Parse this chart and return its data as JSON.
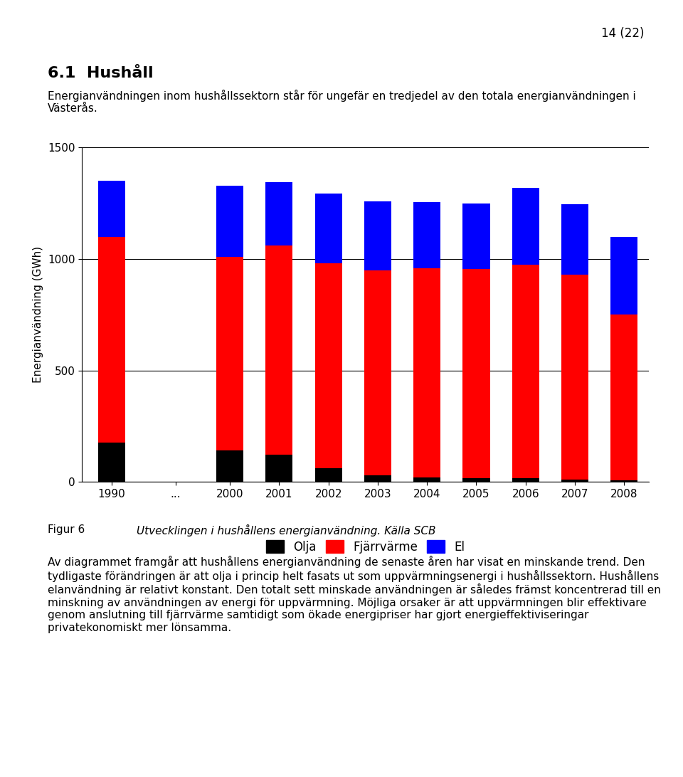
{
  "categories": [
    "1990",
    "...",
    "2000",
    "2001",
    "2002",
    "2003",
    "2004",
    "2005",
    "2006",
    "2007",
    "2008"
  ],
  "olja": [
    175,
    0,
    140,
    120,
    60,
    30,
    20,
    15,
    15,
    10,
    5
  ],
  "fjarrvarme": [
    925,
    0,
    870,
    940,
    920,
    920,
    940,
    940,
    960,
    920,
    745
  ],
  "el": [
    250,
    0,
    320,
    285,
    315,
    310,
    295,
    295,
    345,
    315,
    350
  ],
  "olja_color": "#000000",
  "fjarrvarme_color": "#ff0000",
  "el_color": "#0000ff",
  "ylabel": "Energianvändning (GWh)",
  "ylim": [
    0,
    1500
  ],
  "yticks": [
    0,
    500,
    1000,
    1500
  ],
  "legend_labels": [
    "Olja",
    "Fjärrvärme",
    "El"
  ],
  "caption_fig": "Figur 6",
  "caption_text": "Utvecklingen i hushållens energianvändning. Källa SCB",
  "page_number": "14 (22)",
  "title_text": "6.1  Hushåll",
  "subtitle": "Energianvändningen inom hushållssektorn står för ungefär en tredjedel av den totala energianvändningen i Västerås.",
  "body_text": "Av diagrammet framgår att hushållens energianvändning de senaste åren har visat en minskande trend. Den tydligaste förändringen är att olja i princip helt fasats ut som uppvärmningsenergi i hushållssektorn. Hushållens elanvändning är relativt konstant. Den totalt sett minskade användningen är således främst koncentrerad till en minskning av användningen av energi för uppvärmning. Möjliga orsaker är att uppvärmningen blir effektivare genom anslutning till fjärrvärme samtidigt som ökade energipriser har gjort energieffektiviseringar privatekonomiskt mer lönsamma.",
  "bar_width": 0.55,
  "background_color": "#ffffff"
}
